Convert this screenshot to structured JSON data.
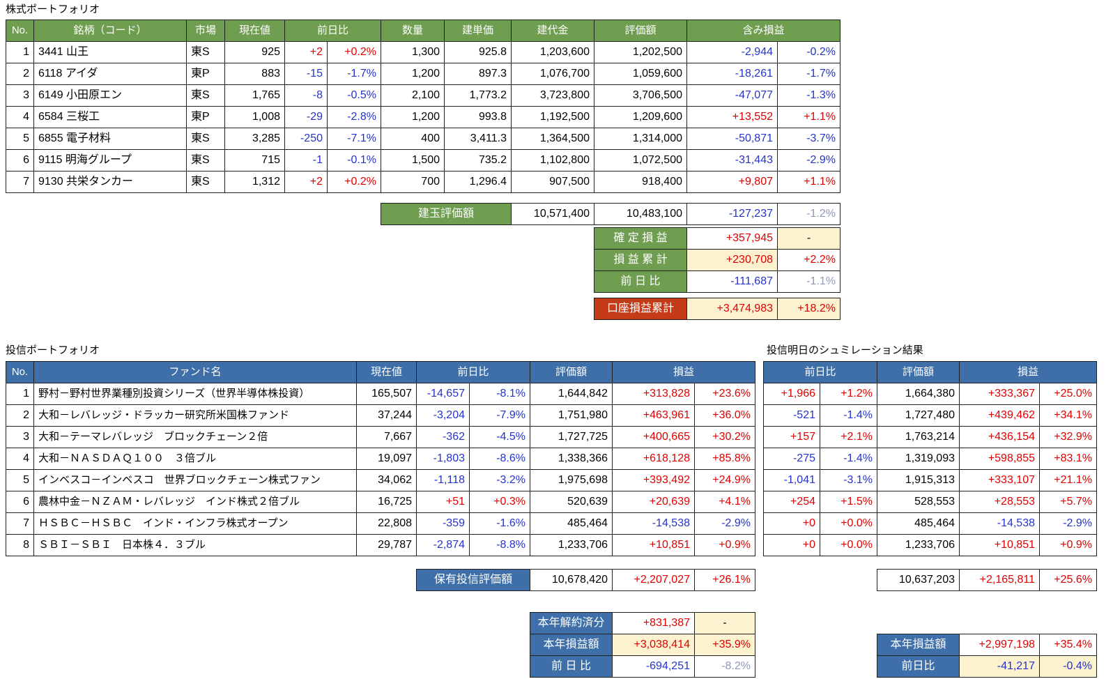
{
  "titles": {
    "stock": "株式ポートフォリオ",
    "fund": "投信ポートフォリオ",
    "simulation": "投信明日のシュミレーション結果"
  },
  "colors": {
    "positive": "#e00000",
    "negative": "#2433cc",
    "muted": "#8d9ab6",
    "highlight": "#fdf2d0",
    "stock_header": "#6f9e50",
    "fund_header": "#3e6fa8",
    "alert": "#c53b17"
  },
  "stock_table": {
    "header": [
      "No.",
      "銘柄（コード）",
      "市場",
      "現在値",
      {
        "t": "前日比",
        "span": 2
      },
      "数量",
      "建単価",
      "建代金",
      "評価額",
      {
        "t": "含み損益",
        "span": 2
      }
    ],
    "rows": [
      [
        "1",
        "3441 山王",
        "東S",
        "925",
        "+2",
        "+0.2%",
        "1,300",
        "925.8",
        "1,203,600",
        "1,202,500",
        "-2,944",
        "-0.2%"
      ],
      [
        "2",
        "6118 アイダ",
        "東P",
        "883",
        "-15",
        "-1.7%",
        "1,200",
        "897.3",
        "1,076,700",
        "1,059,600",
        "-18,261",
        "-1.7%"
      ],
      [
        "3",
        "6149 小田原エン",
        "東S",
        "1,765",
        "-8",
        "-0.5%",
        "2,100",
        "1,773.2",
        "3,723,800",
        "3,706,500",
        "-47,077",
        "-1.3%"
      ],
      [
        "4",
        "6584 三桜工",
        "東P",
        "1,008",
        "-29",
        "-2.8%",
        "1,200",
        "993.8",
        "1,192,500",
        "1,209,600",
        "+13,552",
        "+1.1%"
      ],
      [
        "5",
        "6855 電子材料",
        "東S",
        "3,285",
        "-250",
        "-7.1%",
        "400",
        "3,411.3",
        "1,364,500",
        "1,314,000",
        "-50,871",
        "-3.7%"
      ],
      [
        "6",
        "9115 明海グループ",
        "東S",
        "715",
        "-1",
        "-0.1%",
        "1,500",
        "735.2",
        "1,102,800",
        "1,072,500",
        "-31,443",
        "-2.9%"
      ],
      [
        "7",
        "9130 共栄タンカー",
        "東S",
        "1,312",
        "+2",
        "+0.2%",
        "700",
        "1,296.4",
        "907,500",
        "918,400",
        "+9,807",
        "+1.1%"
      ]
    ]
  },
  "stock_total": {
    "rows": [
      [
        {
          "t": "建玉評価額",
          "c": "lbl-g",
          "a": "c"
        },
        "10,571,400",
        "10,483,100",
        "-127,237",
        {
          "t": "-1.2%",
          "c": "muted"
        }
      ]
    ]
  },
  "stock_pl": {
    "rows": [
      [
        {
          "t": "確 定 損 益",
          "c": "lbl-g",
          "a": "c"
        },
        "+357,945",
        {
          "t": "-",
          "a": "c",
          "bg": "cream"
        }
      ],
      [
        {
          "t": "損 益 累 計",
          "c": "lbl-g",
          "a": "c"
        },
        {
          "t": "+230,708",
          "c": "pos",
          "bg": "cream"
        },
        "+2.2%"
      ],
      [
        {
          "t": "前  日  比",
          "c": "lbl-g",
          "a": "c"
        },
        "-111,687",
        {
          "t": "-1.1%",
          "c": "muted"
        }
      ]
    ]
  },
  "account_total": {
    "rows": [
      [
        {
          "t": "口座損益累計",
          "c": "lbl-r",
          "a": "c"
        },
        {
          "t": "+3,474,983",
          "c": "pos",
          "bg": "cream"
        },
        {
          "t": "+18.2%",
          "c": "pos",
          "bg": "cream"
        }
      ]
    ]
  },
  "fund_table": {
    "header": [
      "No.",
      "ファンド名",
      "現在値",
      {
        "t": "前日比",
        "span": 2
      },
      "評価額",
      {
        "t": "損益",
        "span": 2
      }
    ],
    "rows": [
      [
        "1",
        "野村－野村世界業種別投資シリーズ（世界半導体株投資）",
        "165,507",
        "-14,657",
        "-8.1%",
        "1,644,842",
        "+313,828",
        "+23.6%"
      ],
      [
        "2",
        "大和－レバレッジ・ドラッカー研究所米国株ファンド",
        "37,244",
        "-3,204",
        "-7.9%",
        "1,751,980",
        "+463,961",
        "+36.0%"
      ],
      [
        "3",
        "大和－テーマレバレッジ　ブロックチェーン２倍",
        "7,667",
        "-362",
        "-4.5%",
        "1,727,725",
        "+400,665",
        "+30.2%"
      ],
      [
        "4",
        "大和－ＮＡＳＤＡＱ１００　３倍ブル",
        "19,097",
        "-1,803",
        "-8.6%",
        "1,338,366",
        "+618,128",
        "+85.8%"
      ],
      [
        "5",
        "インベスコ－インベスコ　世界ブロックチェーン株式ファン",
        "34,062",
        "-1,118",
        "-3.2%",
        "1,975,698",
        "+393,492",
        "+24.9%"
      ],
      [
        "6",
        "農林中金－ＮＺＡＭ・レバレッジ　インド株式２倍ブル",
        "16,725",
        "+51",
        "+0.3%",
        "520,639",
        "+20,639",
        "+4.1%"
      ],
      [
        "7",
        "ＨＳＢＣ－ＨＳＢＣ　インド・インフラ株式オープン",
        "22,808",
        "-359",
        "-1.6%",
        "485,464",
        "-14,538",
        "-2.9%"
      ],
      [
        "8",
        "ＳＢＩ－ＳＢＩ　日本株４．３ブル",
        "29,787",
        "-2,874",
        "-8.8%",
        "1,233,706",
        "+10,851",
        "+0.9%"
      ]
    ]
  },
  "sim_table": {
    "header": [
      {
        "t": "前日比",
        "span": 2
      },
      "評価額",
      {
        "t": "損益",
        "span": 2
      }
    ],
    "rows": [
      [
        "+1,966",
        "+1.2%",
        "1,664,380",
        "+333,367",
        "+25.0%"
      ],
      [
        "-521",
        "-1.4%",
        "1,727,480",
        "+439,462",
        "+34.1%"
      ],
      [
        "+157",
        "+2.1%",
        "1,763,214",
        "+436,154",
        "+32.9%"
      ],
      [
        "-275",
        "-1.4%",
        "1,319,093",
        "+598,855",
        "+83.1%"
      ],
      [
        "-1,041",
        "-3.1%",
        "1,915,313",
        "+333,107",
        "+21.1%"
      ],
      [
        "+254",
        "+1.5%",
        "528,553",
        "+28,553",
        "+5.7%"
      ],
      [
        "+0",
        "+0.0%",
        "485,464",
        "-14,538",
        "-2.9%"
      ],
      [
        "+0",
        "+0.0%",
        "1,233,706",
        "+10,851",
        "+0.9%"
      ]
    ]
  },
  "fund_total": {
    "rows": [
      [
        {
          "t": "保有投信評価額",
          "c": "lbl-b",
          "a": "c"
        },
        "10,678,420",
        "+2,207,027",
        "+26.1%"
      ]
    ]
  },
  "sim_total": {
    "rows": [
      [
        "10,637,203",
        "+2,165,811",
        "+25.6%"
      ]
    ]
  },
  "fund_pl": {
    "rows": [
      [
        {
          "t": "本年解約済分",
          "c": "lbl-b",
          "a": "c"
        },
        "+831,387",
        {
          "t": "-",
          "a": "c",
          "bg": "cream"
        }
      ],
      [
        {
          "t": "本年損益額",
          "c": "lbl-b",
          "a": "c"
        },
        {
          "t": "+3,038,414",
          "c": "pos",
          "bg": "cream"
        },
        {
          "t": "+35.9%",
          "c": "pos",
          "bg": "cream"
        }
      ],
      [
        {
          "t": "前  日  比",
          "c": "lbl-b",
          "a": "c"
        },
        "-694,251",
        {
          "t": "-8.2%",
          "c": "muted"
        }
      ]
    ]
  },
  "sim_pl": {
    "rows": [
      [
        {
          "t": "本年損益額",
          "c": "lbl-b",
          "a": "c"
        },
        "+2,997,198",
        "+35.4%"
      ],
      [
        {
          "t": "前日比",
          "c": "lbl-b",
          "a": "c"
        },
        {
          "t": "-41,217",
          "c": "neg",
          "bg": "cream"
        },
        {
          "t": "-0.4%",
          "c": "neg",
          "bg": "cream"
        }
      ]
    ]
  }
}
